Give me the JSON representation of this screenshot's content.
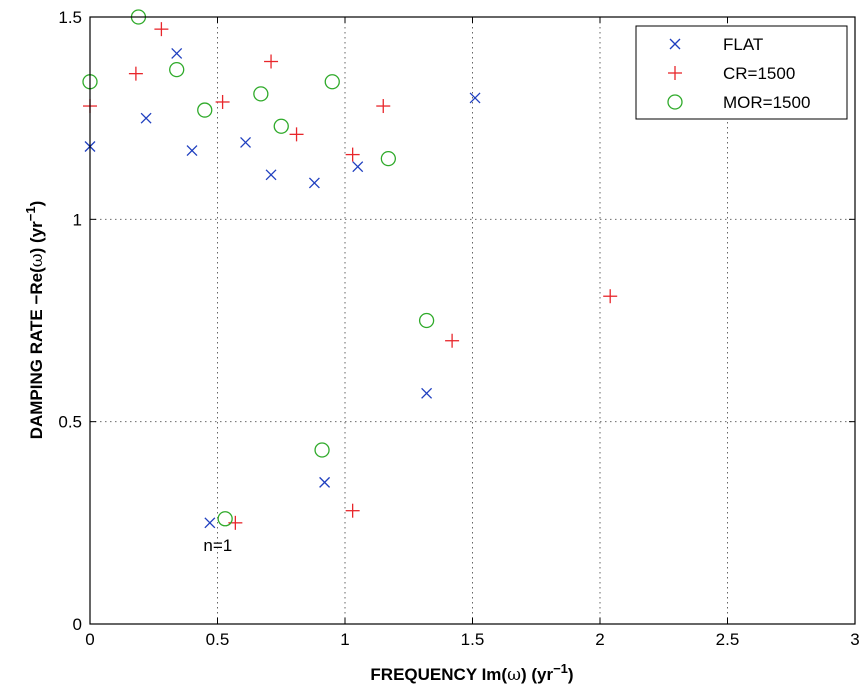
{
  "chart_data": {
    "type": "scatter",
    "title": "",
    "xlabel_main": "FREQUENCY Im(",
    "xlabel_omega": "ω",
    "xlabel_tail": ") (yr",
    "xlabel_exp": "−1",
    "xlabel_close": ")",
    "ylabel_main": "DAMPING RATE −Re(",
    "ylabel_omega": "ω",
    "ylabel_tail": ") (yr",
    "ylabel_exp": "−1",
    "ylabel_close": ")",
    "xlim": [
      0,
      3
    ],
    "ylim": [
      0,
      1.5
    ],
    "xticks": [
      0,
      0.5,
      1,
      1.5,
      2,
      2.5,
      3
    ],
    "xtick_labels": [
      "0",
      "0.5",
      "1",
      "1.5",
      "2",
      "2.5",
      "3"
    ],
    "yticks": [
      0,
      0.5,
      1,
      1.5
    ],
    "ytick_labels": [
      "0",
      "0.5",
      "1",
      "1.5"
    ],
    "grid": true,
    "legend_position": "top-right",
    "series": [
      {
        "name": "FLAT",
        "marker": "x",
        "color": "#1f3fbf",
        "points": [
          [
            0.0,
            1.18
          ],
          [
            0.22,
            1.25
          ],
          [
            0.34,
            1.41
          ],
          [
            0.4,
            1.17
          ],
          [
            0.61,
            1.19
          ],
          [
            0.71,
            1.11
          ],
          [
            0.88,
            1.09
          ],
          [
            1.05,
            1.13
          ],
          [
            1.51,
            1.3
          ],
          [
            1.32,
            0.57
          ],
          [
            0.92,
            0.35
          ],
          [
            0.47,
            0.25
          ]
        ]
      },
      {
        "name": "CR=1500",
        "marker": "+",
        "color": "#e8262b",
        "points": [
          [
            0.0,
            1.28
          ],
          [
            0.18,
            1.36
          ],
          [
            0.28,
            1.47
          ],
          [
            0.52,
            1.29
          ],
          [
            0.71,
            1.39
          ],
          [
            0.81,
            1.21
          ],
          [
            1.03,
            1.16
          ],
          [
            1.15,
            1.28
          ],
          [
            2.04,
            0.81
          ],
          [
            1.42,
            0.7
          ],
          [
            1.03,
            0.28
          ],
          [
            0.57,
            0.25
          ]
        ]
      },
      {
        "name": "MOR=1500",
        "marker": "o",
        "color": "#2faa2a",
        "points": [
          [
            0.0,
            1.34
          ],
          [
            0.19,
            1.5
          ],
          [
            0.34,
            1.37
          ],
          [
            0.45,
            1.27
          ],
          [
            0.67,
            1.31
          ],
          [
            0.75,
            1.23
          ],
          [
            0.95,
            1.34
          ],
          [
            1.17,
            1.15
          ],
          [
            1.32,
            0.75
          ],
          [
            0.91,
            0.43
          ],
          [
            0.53,
            0.26
          ]
        ]
      }
    ],
    "annotations": [
      {
        "text": "n=1",
        "x": 0.47,
        "y": 0.25
      }
    ]
  }
}
